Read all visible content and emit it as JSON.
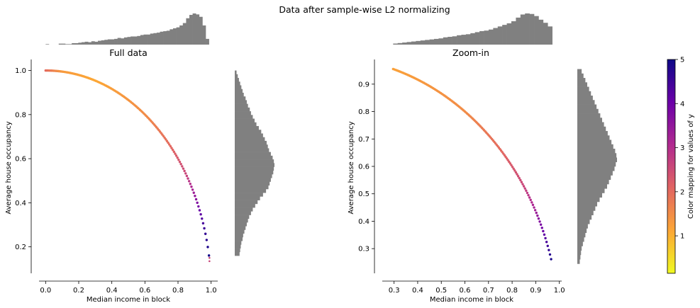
{
  "figure": {
    "title": "Data after sample-wise L2 normalizing"
  },
  "colorbar": {
    "label": "Color mapping for values of y",
    "ticks": [
      1,
      2,
      3,
      4,
      5
    ],
    "colormap_stops": [
      "#f0f921",
      "#fca636",
      "#e16462",
      "#b12a90",
      "#6a00a8",
      "#0d0887"
    ],
    "range": [
      0.15,
      5.0
    ]
  },
  "chart_data": [
    {
      "id": "full",
      "type": "scatter",
      "title": "Full data",
      "xlabel": "Median income in block",
      "ylabel": "Average house occupancy",
      "xlim": [
        -0.04,
        1.04
      ],
      "ylim": [
        0.08,
        1.05
      ],
      "xticks": [
        0.0,
        0.2,
        0.4,
        0.6,
        0.8,
        1.0
      ],
      "yticks": [
        0.2,
        0.4,
        0.6,
        0.8,
        1.0
      ],
      "xticklabels": [
        "0.0",
        "0.2",
        "0.4",
        "0.6",
        "0.8",
        "1.0"
      ],
      "yticklabels": [
        "0.2",
        "0.4",
        "0.6",
        "0.8",
        "1.0"
      ],
      "curve": "unit circle",
      "x_range": [
        0.0,
        0.987
      ],
      "y_range": [
        0.16,
        1.0
      ],
      "color_by_x": [
        {
          "x": 0.0,
          "y": 2.0
        },
        {
          "x": 0.1,
          "y": 1.3
        },
        {
          "x": 0.3,
          "y": 1.1
        },
        {
          "x": 0.6,
          "y": 1.5
        },
        {
          "x": 0.75,
          "y": 2.0
        },
        {
          "x": 0.85,
          "y": 2.6
        },
        {
          "x": 0.9,
          "y": 3.4
        },
        {
          "x": 0.94,
          "y": 4.2
        },
        {
          "x": 0.99,
          "y": 5.0
        }
      ],
      "outliers": [
        {
          "x": 0.99,
          "y": 0.135
        },
        {
          "x": 0.99,
          "y": 0.15
        }
      ],
      "hist_x": [
        1,
        0,
        0,
        0,
        2,
        2,
        1,
        1,
        3,
        3,
        4,
        5,
        6,
        5,
        7,
        6,
        8,
        9,
        10,
        11,
        11,
        12,
        14,
        13,
        15,
        16,
        17,
        17,
        18,
        20,
        21,
        21,
        23,
        24,
        25,
        27,
        28,
        29,
        32,
        34,
        36,
        40,
        45,
        55,
        62,
        65,
        63,
        58,
        40,
        12
      ],
      "hist_y": [
        8,
        9,
        10,
        11,
        13,
        14,
        16,
        18,
        20,
        22,
        24,
        27,
        30,
        34,
        38,
        42,
        47,
        52,
        56,
        58,
        60,
        62,
        64,
        65,
        66,
        65,
        63,
        60,
        57,
        55,
        53,
        50,
        47,
        44,
        40,
        36,
        33,
        30,
        27,
        25,
        22,
        20,
        18,
        15,
        13,
        11,
        9,
        7,
        5,
        3
      ]
    },
    {
      "id": "zoom",
      "type": "scatter",
      "title": "Zoom-in",
      "xlabel": "Median income in block",
      "ylabel": "Average house occupancy",
      "xlim": [
        0.25,
        1.01
      ],
      "ylim": [
        0.21,
        0.99
      ],
      "xticks": [
        0.3,
        0.4,
        0.5,
        0.6,
        0.7,
        0.8,
        0.9,
        1.0
      ],
      "yticks": [
        0.3,
        0.4,
        0.5,
        0.6,
        0.7,
        0.8,
        0.9
      ],
      "xticklabels": [
        "0.3",
        "0.4",
        "0.5",
        "0.6",
        "0.7",
        "0.8",
        "0.9",
        "1.0"
      ],
      "yticklabels": [
        "0.3",
        "0.4",
        "0.5",
        "0.6",
        "0.7",
        "0.8",
        "0.9"
      ],
      "curve": "unit circle",
      "x_range": [
        0.296,
        0.97
      ],
      "y_range": [
        0.245,
        0.955
      ],
      "color_by_x": [
        {
          "x": 0.3,
          "y": 1.2
        },
        {
          "x": 0.6,
          "y": 1.5
        },
        {
          "x": 0.75,
          "y": 2.0
        },
        {
          "x": 0.85,
          "y": 2.6
        },
        {
          "x": 0.9,
          "y": 3.3
        },
        {
          "x": 0.94,
          "y": 4.2
        },
        {
          "x": 0.97,
          "y": 5.0
        }
      ],
      "outliers": [],
      "hist_x": [
        2,
        3,
        4,
        5,
        6,
        7,
        8,
        9,
        10,
        11,
        12,
        14,
        15,
        16,
        18,
        19,
        20,
        22,
        24,
        26,
        27,
        29,
        32,
        35,
        38,
        41,
        45,
        52,
        58,
        60,
        59,
        55,
        48,
        42,
        35
      ],
      "hist_y": [
        4,
        5,
        6,
        7,
        9,
        11,
        13,
        15,
        17,
        20,
        23,
        26,
        29,
        32,
        36,
        40,
        44,
        48,
        51,
        54,
        57,
        60,
        62,
        64,
        63,
        61,
        58,
        55,
        52,
        49,
        46,
        43,
        40,
        37,
        34,
        31,
        28,
        25,
        22,
        19,
        16,
        13,
        10,
        7
      ]
    }
  ]
}
